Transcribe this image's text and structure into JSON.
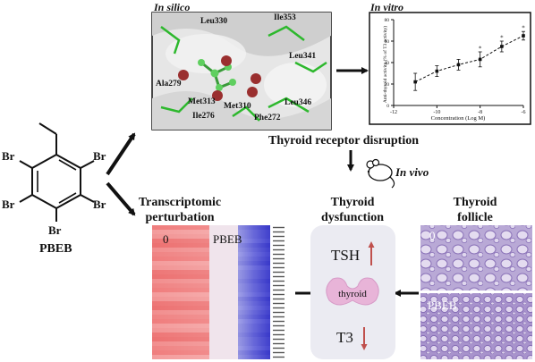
{
  "molecule": {
    "substituent_label": "Br",
    "name": "PBEB"
  },
  "in_silico": {
    "heading": "In silico",
    "residues": [
      "Leu330",
      "Ile353",
      "Leu341",
      "Ala279",
      "Met313",
      "Met310",
      "Leu346",
      "Ile276",
      "Phe272"
    ]
  },
  "in_vitro": {
    "heading": "In vitro",
    "chart_data": {
      "type": "line",
      "xlabel": "Concentration (Log M)",
      "ylabel": "Anti-thyroid activity (% of T3 activity)",
      "x_ticks": [
        "-12",
        "-10",
        "-8",
        "-6"
      ],
      "y_ticks": [
        "0",
        "20",
        "40",
        "60",
        "80"
      ],
      "xlim": [
        -12,
        -6
      ],
      "ylim": [
        0,
        80
      ],
      "points": [
        {
          "x": -11,
          "y": 22,
          "err": 8,
          "star": false
        },
        {
          "x": -10,
          "y": 32,
          "err": 5,
          "star": false
        },
        {
          "x": -9,
          "y": 38,
          "err": 5,
          "star": false
        },
        {
          "x": -8,
          "y": 43,
          "err": 7,
          "star": true
        },
        {
          "x": -7,
          "y": 55,
          "err": 5,
          "star": true
        },
        {
          "x": -6,
          "y": 65,
          "err": 4,
          "star": true
        }
      ],
      "star_label": "*"
    }
  },
  "receptor_label": "Thyroid receptor disruption",
  "in_vivo_label": "In vivo",
  "transcriptomic": {
    "title_line1": "Transcriptomic",
    "title_line2": "perturbation",
    "group_control": "0",
    "group_treated": "PBEB"
  },
  "dysfunction": {
    "title_line1": "Thyroid",
    "title_line2": "dysfunction",
    "tsh_label": "TSH",
    "organ_label": "thyroid",
    "t3_label": "T3",
    "tsh_color": "#c0504d",
    "t3_color": "#c0504d"
  },
  "follicle": {
    "title_line1": "Thyroid",
    "title_line2": "follicle",
    "label_control": "0",
    "label_treated": "PBEB"
  }
}
